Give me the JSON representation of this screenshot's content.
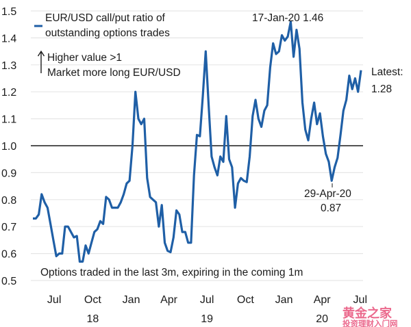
{
  "chart_data": {
    "type": "line",
    "title": "",
    "xlabel": "",
    "ylabel": "",
    "ylim": [
      0.5,
      1.5
    ],
    "yticks": [
      "1.5",
      "1.4",
      "1.3",
      "1.2",
      "1.1",
      "1.0",
      "0.9",
      "0.8",
      "0.7",
      "0.6",
      "0.5"
    ],
    "xticks": [
      {
        "label": "Jul",
        "date": "2018-07-01"
      },
      {
        "label": "Oct",
        "date": "2018-10-01"
      },
      {
        "label": "Jan",
        "date": "2019-01-01"
      },
      {
        "label": "Apr",
        "date": "2019-04-01"
      },
      {
        "label": "Jul",
        "date": "2019-07-01"
      },
      {
        "label": "Oct",
        "date": "2019-10-01"
      },
      {
        "label": "Jan",
        "date": "2020-01-01"
      },
      {
        "label": "Apr",
        "date": "2020-04-01"
      },
      {
        "label": "Jul",
        "date": "2020-07-01"
      }
    ],
    "year_labels": [
      {
        "label": "18",
        "date": "2018-10-01"
      },
      {
        "label": "19",
        "date": "2019-07-01"
      },
      {
        "label": "20",
        "date": "2020-04-01"
      }
    ],
    "grid": true,
    "reference_line": 1.0,
    "legend_position": "top-left",
    "series": [
      {
        "name": "EUR/USD call/put ratio of outstanding options trades",
        "color": "#1f5fa6",
        "x": [
          "2018-05-11",
          "2018-05-18",
          "2018-05-25",
          "2018-06-01",
          "2018-06-08",
          "2018-06-15",
          "2018-06-22",
          "2018-06-29",
          "2018-07-06",
          "2018-07-13",
          "2018-07-20",
          "2018-07-27",
          "2018-08-03",
          "2018-08-10",
          "2018-08-17",
          "2018-08-24",
          "2018-08-31",
          "2018-09-07",
          "2018-09-14",
          "2018-09-21",
          "2018-09-28",
          "2018-10-05",
          "2018-10-12",
          "2018-10-19",
          "2018-10-26",
          "2018-11-02",
          "2018-11-09",
          "2018-11-16",
          "2018-11-23",
          "2018-11-30",
          "2018-12-07",
          "2018-12-14",
          "2018-12-21",
          "2018-12-28",
          "2019-01-04",
          "2019-01-11",
          "2019-01-18",
          "2019-01-25",
          "2019-02-01",
          "2019-02-08",
          "2019-02-15",
          "2019-02-22",
          "2019-03-01",
          "2019-03-08",
          "2019-03-15",
          "2019-03-22",
          "2019-03-29",
          "2019-04-05",
          "2019-04-12",
          "2019-04-19",
          "2019-04-26",
          "2019-05-03",
          "2019-05-10",
          "2019-05-17",
          "2019-05-24",
          "2019-05-31",
          "2019-06-07",
          "2019-06-14",
          "2019-06-21",
          "2019-06-28",
          "2019-07-05",
          "2019-07-12",
          "2019-07-19",
          "2019-07-26",
          "2019-08-02",
          "2019-08-09",
          "2019-08-16",
          "2019-08-23",
          "2019-08-30",
          "2019-09-06",
          "2019-09-13",
          "2019-09-20",
          "2019-09-27",
          "2019-10-04",
          "2019-10-11",
          "2019-10-18",
          "2019-10-25",
          "2019-11-01",
          "2019-11-08",
          "2019-11-15",
          "2019-11-22",
          "2019-11-29",
          "2019-12-06",
          "2019-12-13",
          "2019-12-20",
          "2019-12-27",
          "2020-01-03",
          "2020-01-10",
          "2020-01-17",
          "2020-01-24",
          "2020-01-31",
          "2020-02-07",
          "2020-02-14",
          "2020-02-21",
          "2020-02-28",
          "2020-03-06",
          "2020-03-13",
          "2020-03-20",
          "2020-03-27",
          "2020-04-03",
          "2020-04-10",
          "2020-04-17",
          "2020-04-24",
          "2020-05-01",
          "2020-05-08",
          "2020-05-15",
          "2020-05-22",
          "2020-05-29",
          "2020-06-05",
          "2020-06-12",
          "2020-06-19",
          "2020-06-26",
          "2020-07-03"
        ],
        "values": [
          0.73,
          0.73,
          0.745,
          0.82,
          0.79,
          0.77,
          0.71,
          0.65,
          0.59,
          0.6,
          0.6,
          0.7,
          0.7,
          0.68,
          0.66,
          0.665,
          0.57,
          0.57,
          0.63,
          0.6,
          0.64,
          0.68,
          0.69,
          0.72,
          0.71,
          0.81,
          0.8,
          0.77,
          0.77,
          0.77,
          0.79,
          0.82,
          0.86,
          0.87,
          1.0,
          1.2,
          1.1,
          1.08,
          1.1,
          0.88,
          0.81,
          0.8,
          0.79,
          0.7,
          0.78,
          0.64,
          0.61,
          0.605,
          0.66,
          0.76,
          0.745,
          0.68,
          0.68,
          0.64,
          0.64,
          0.89,
          1.04,
          1.035,
          1.185,
          1.35,
          1.15,
          0.96,
          0.92,
          0.89,
          0.96,
          0.94,
          1.11,
          0.95,
          0.92,
          0.77,
          0.86,
          0.88,
          0.87,
          0.865,
          0.96,
          1.11,
          1.17,
          1.1,
          1.07,
          1.13,
          1.15,
          1.29,
          1.38,
          1.34,
          1.35,
          1.41,
          1.39,
          1.405,
          1.46,
          1.33,
          1.43,
          1.36,
          1.16,
          1.06,
          1.02,
          1.1,
          1.16,
          1.08,
          1.12,
          1.035,
          0.97,
          0.94,
          0.87,
          0.92,
          0.955,
          1.04,
          1.13,
          1.17,
          1.26,
          1.21,
          1.25,
          1.2,
          1.28
        ]
      }
    ],
    "legend": [
      "EUR/USD call/put ratio of",
      "outstanding options trades"
    ],
    "annotations": {
      "direction_1": "Higher value >1",
      "direction_2": "Market more long EUR/USD",
      "peak": "17-Jan-20 1.46",
      "trough_1": "29-Apr-20",
      "trough_2": "0.87",
      "latest_1": "Latest:",
      "latest_2": "1.28",
      "footnote": "Options traded in the last 3m, expiring in the coming 1m"
    }
  },
  "watermark": {
    "line1": "黄金之家",
    "line2": "投资理财入门网"
  }
}
